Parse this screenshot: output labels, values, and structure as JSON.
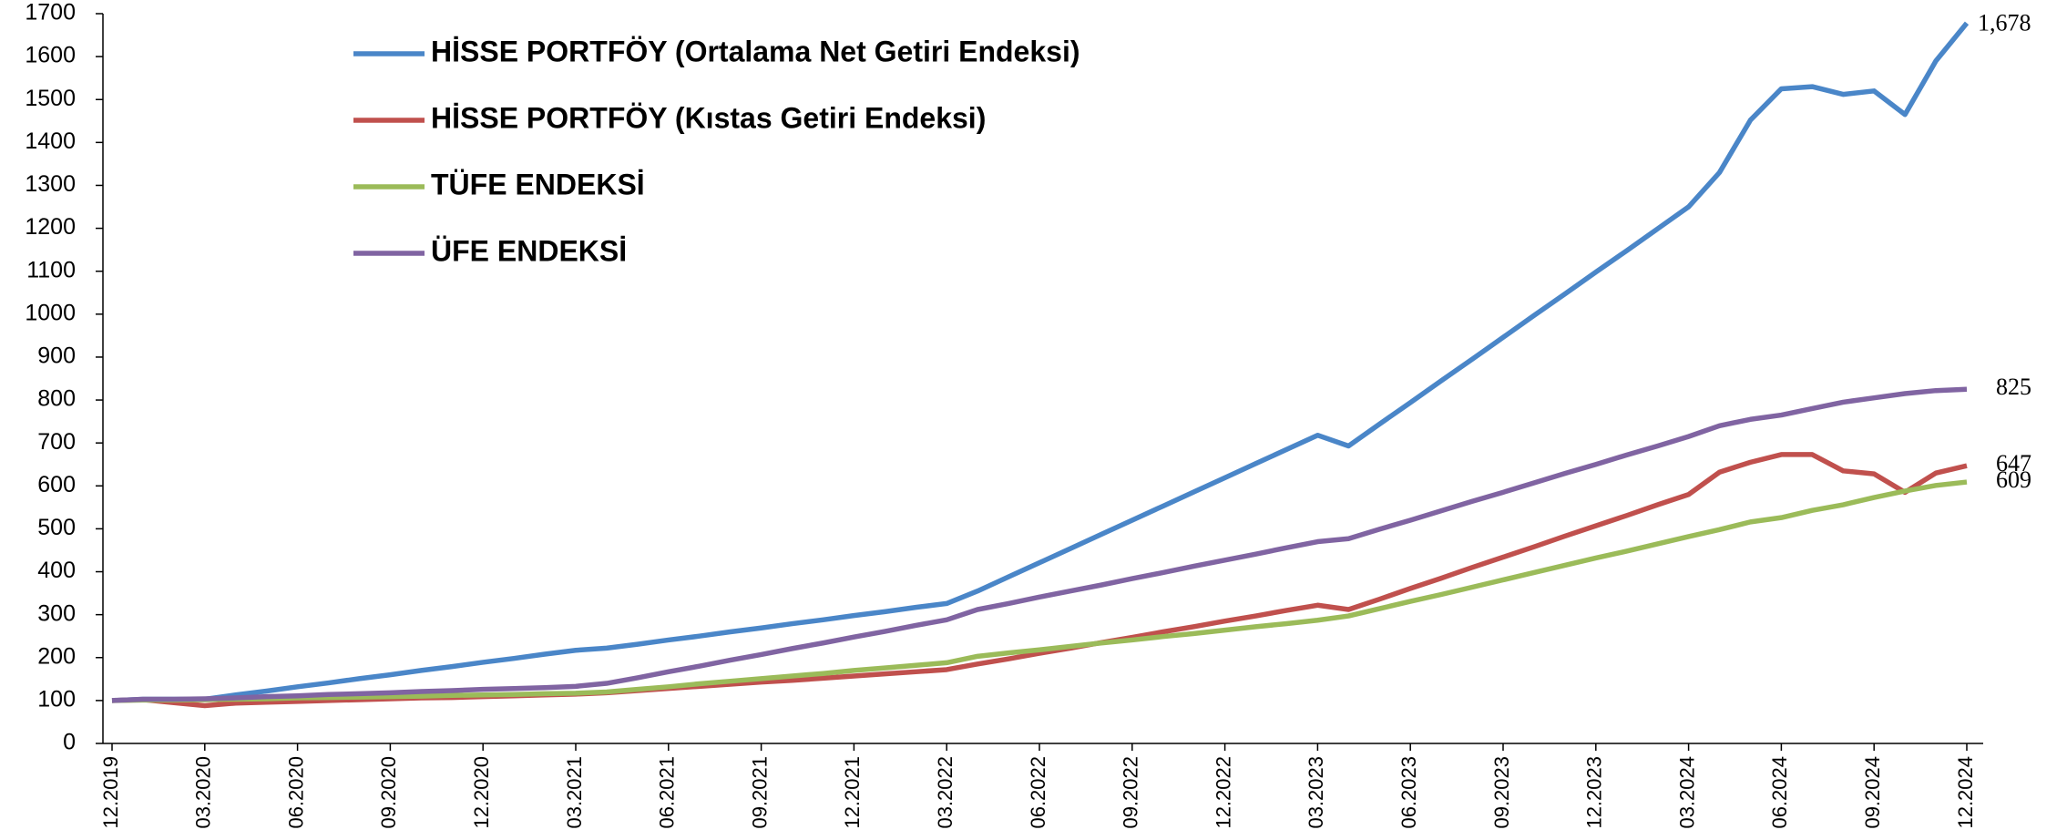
{
  "chart_data": {
    "type": "line",
    "categories": [
      "12.2019",
      null,
      null,
      "03.2020",
      null,
      null,
      "06.2020",
      null,
      null,
      "09.2020",
      null,
      null,
      "12.2020",
      null,
      null,
      "03.2021",
      null,
      null,
      "06.2021",
      null,
      null,
      "09.2021",
      null,
      null,
      "12.2021",
      null,
      null,
      "03.2022",
      null,
      null,
      "06.2022",
      null,
      null,
      "09.2022",
      null,
      null,
      "12.2022",
      null,
      null,
      "03.2023",
      null,
      null,
      "06.2023",
      null,
      null,
      "09.2023",
      null,
      null,
      "12.2023",
      null,
      null,
      "03.2024",
      null,
      null,
      "06.2024",
      null,
      null,
      "09.2024",
      null,
      null,
      "12.2024"
    ],
    "series": [
      {
        "name": "HİSSE PORTFÖY (Ortalama Net Getiri Endeksi)",
        "color": "#4a86c8",
        "end_label": "1,678",
        "values": [
          100,
          103,
          103,
          103,
          113,
          122,
          132,
          141,
          151,
          160,
          170,
          179,
          189,
          198,
          208,
          217,
          222,
          231,
          241,
          250,
          260,
          269,
          279,
          288,
          298,
          307,
          317,
          326,
          355,
          388,
          421,
          454,
          487,
          520,
          553,
          586,
          619,
          652,
          685,
          718,
          693,
          744,
          794,
          845,
          895,
          946,
          997,
          1047,
          1098,
          1148,
          1199,
          1250,
          1330,
          1452,
          1525,
          1530,
          1512,
          1520,
          1465,
          1590,
          1678
        ]
      },
      {
        "name": "HİSSE PORTFÖY (Kıstas Getiri Endeksi)",
        "color": "#c0504d",
        "end_label": "647",
        "values": [
          100,
          102,
          95,
          88,
          94,
          96,
          98,
          100,
          102,
          104,
          106,
          107,
          109,
          111,
          113,
          115,
          118,
          123,
          128,
          133,
          138,
          143,
          147,
          152,
          157,
          162,
          167,
          172,
          185,
          197,
          210,
          222,
          235,
          247,
          260,
          272,
          285,
          297,
          310,
          322,
          312,
          336,
          361,
          385,
          410,
          434,
          458,
          483,
          507,
          531,
          556,
          580,
          632,
          655,
          673,
          673,
          635,
          628,
          585,
          630,
          647
        ]
      },
      {
        "name": "TÜFE ENDEKSİ",
        "color": "#9bbb59",
        "end_label": "609",
        "values": [
          100,
          101,
          101,
          102,
          103,
          104,
          106,
          107,
          108,
          109,
          110,
          112,
          113,
          114,
          116,
          117,
          120,
          126,
          132,
          139,
          145,
          151,
          157,
          163,
          170,
          176,
          182,
          188,
          203,
          211,
          218,
          226,
          234,
          241,
          249,
          256,
          264,
          272,
          279,
          287,
          297,
          314,
          331,
          347,
          364,
          381,
          398,
          415,
          432,
          448,
          465,
          482,
          498,
          516,
          526,
          543,
          556,
          573,
          588,
          601,
          609
        ]
      },
      {
        "name": "ÜFE ENDEKSİ",
        "color": "#8064a2",
        "end_label": "825",
        "values": [
          100,
          103,
          103,
          104,
          106,
          109,
          111,
          114,
          116,
          118,
          121,
          123,
          126,
          128,
          130,
          133,
          140,
          153,
          167,
          180,
          194,
          207,
          221,
          234,
          248,
          261,
          275,
          288,
          312,
          326,
          341,
          355,
          369,
          384,
          398,
          413,
          427,
          441,
          456,
          470,
          477,
          499,
          520,
          542,
          564,
          585,
          607,
          629,
          650,
          672,
          693,
          715,
          740,
          755,
          765,
          780,
          795,
          805,
          815,
          822,
          825
        ]
      }
    ],
    "ylim": [
      0,
      1700
    ],
    "yticks": [
      0,
      100,
      200,
      300,
      400,
      500,
      600,
      700,
      800,
      900,
      1000,
      1100,
      1200,
      1300,
      1400,
      1500,
      1600,
      1700
    ],
    "grid": false,
    "legend": "top-left"
  }
}
